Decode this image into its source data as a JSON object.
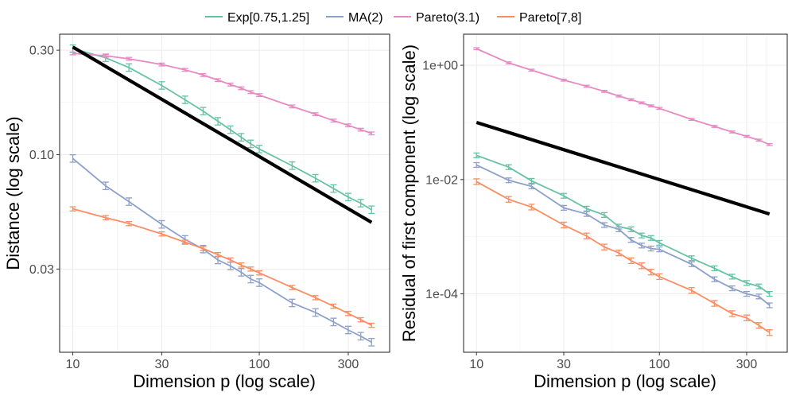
{
  "chart_data": [
    {
      "type": "line",
      "panel": "left",
      "xlabel": "Dimension p (log scale)",
      "ylabel": "Distance (log scale)",
      "x_scale": "log",
      "y_scale": "log",
      "xlim": [
        8.5,
        500
      ],
      "ylim": [
        0.0125,
        0.355
      ],
      "xticks": [
        {
          "value": 10,
          "label": "10"
        },
        {
          "value": 30,
          "label": "30"
        },
        {
          "value": 100,
          "label": "100"
        },
        {
          "value": 300,
          "label": "300"
        }
      ],
      "yticks": [
        {
          "value": 0.03,
          "label": "0.03"
        },
        {
          "value": 0.1,
          "label": "0.10"
        },
        {
          "value": 0.3,
          "label": "0.30"
        }
      ],
      "x": [
        10,
        15,
        20,
        30,
        40,
        50,
        60,
        70,
        80,
        90,
        100,
        150,
        200,
        250,
        300,
        350,
        400
      ],
      "series": [
        {
          "name": "Exp[0.75,1.25]",
          "values": [
            0.305,
            0.277,
            0.25,
            0.207,
            0.178,
            0.158,
            0.142,
            0.13,
            0.12,
            0.112,
            0.106,
            0.089,
            0.078,
            0.07,
            0.064,
            0.06,
            0.056
          ]
        },
        {
          "name": "MA(2)",
          "values": [
            0.096,
            0.072,
            0.061,
            0.048,
            0.041,
            0.037,
            0.033,
            0.031,
            0.029,
            0.027,
            0.026,
            0.021,
            0.019,
            0.0172,
            0.0158,
            0.0148,
            0.0139
          ]
        },
        {
          "name": "Pareto(3.1)",
          "values": [
            0.29,
            0.283,
            0.274,
            0.258,
            0.244,
            0.231,
            0.219,
            0.209,
            0.201,
            0.193,
            0.187,
            0.166,
            0.153,
            0.143,
            0.136,
            0.13,
            0.125
          ]
        },
        {
          "name": "Pareto[7,8]",
          "values": [
            0.0565,
            0.0515,
            0.0484,
            0.0434,
            0.0398,
            0.0372,
            0.0349,
            0.033,
            0.0313,
            0.03,
            0.0288,
            0.0247,
            0.0222,
            0.0203,
            0.0188,
            0.0176,
            0.0166
          ]
        }
      ],
      "error_half_width": [
        0.04,
        0.04,
        0.015,
        0.022
      ],
      "reference_line": {
        "x": [
          10,
          400
        ],
        "y": [
          0.31,
          0.049
        ]
      }
    },
    {
      "type": "line",
      "panel": "right",
      "xlabel": "Dimension p (log scale)",
      "ylabel": "Residual of first component (log scale)",
      "x_scale": "log",
      "y_scale": "log",
      "xlim": [
        8.5,
        500
      ],
      "ylim": [
        9.5e-06,
        3.5
      ],
      "xticks": [
        {
          "value": 10,
          "label": "10"
        },
        {
          "value": 30,
          "label": "30"
        },
        {
          "value": 100,
          "label": "100"
        },
        {
          "value": 300,
          "label": "300"
        }
      ],
      "yticks": [
        {
          "value": 0.0001,
          "label": "1e-04"
        },
        {
          "value": 0.01,
          "label": "1e-02"
        },
        {
          "value": 1,
          "label": "1e+00"
        }
      ],
      "x": [
        10,
        15,
        20,
        30,
        40,
        50,
        60,
        70,
        80,
        90,
        100,
        150,
        200,
        250,
        300,
        350,
        400
      ],
      "series": [
        {
          "name": "Exp[0.75,1.25]",
          "values": [
            0.0265,
            0.0165,
            0.0095,
            0.0052,
            0.0031,
            0.0024,
            0.0015,
            0.00135,
            0.00105,
            0.00095,
            0.00078,
            0.00042,
            0.00028,
            0.0002,
            0.000155,
            0.000135,
            0.0001
          ]
        },
        {
          "name": "MA(2)",
          "values": [
            0.018,
            0.0097,
            0.0076,
            0.0032,
            0.0025,
            0.0016,
            0.00135,
            0.00088,
            0.0007,
            0.00062,
            0.0006,
            0.00033,
            0.00018,
            0.000125,
            0.0001,
            9e-05,
            6.3e-05
          ]
        },
        {
          "name": "Pareto(3.1)",
          "values": [
            1.95,
            1.1,
            0.82,
            0.55,
            0.43,
            0.35,
            0.29,
            0.25,
            0.22,
            0.195,
            0.176,
            0.113,
            0.085,
            0.068,
            0.057,
            0.049,
            0.041
          ]
        },
        {
          "name": "Pareto[7,8]",
          "values": [
            0.0092,
            0.0045,
            0.0033,
            0.0016,
            0.00103,
            0.00066,
            0.00052,
            0.00038,
            0.00031,
            0.00024,
            0.0002,
            0.000115,
            6.8e-05,
            4.5e-05,
            3.8e-05,
            2.8e-05,
            2.1e-05
          ]
        }
      ],
      "error_half_width": [
        0.1,
        0.1,
        0.04,
        0.12
      ],
      "reference_line": {
        "x": [
          10,
          400
        ],
        "y": [
          0.1,
          0.0025
        ]
      }
    }
  ],
  "legend": {
    "position": "top",
    "entries": [
      {
        "name": "Exp[0.75,1.25]",
        "color": "#66c2a5"
      },
      {
        "name": "MA(2)",
        "color": "#8da0cb"
      },
      {
        "name": "Pareto(3.1)",
        "color": "#e78ac3"
      },
      {
        "name": "Pareto[7,8]",
        "color": "#fc8d62"
      }
    ]
  },
  "reference_line_color": "#000000"
}
